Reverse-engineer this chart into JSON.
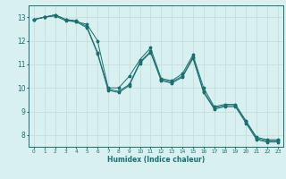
{
  "xlabel": "Humidex (Indice chaleur)",
  "bg_color": "#d8f0f0",
  "grid_color": "#c8dede",
  "line_color": "#1a7070",
  "xlim": [
    -0.5,
    23.5
  ],
  "ylim": [
    7.5,
    13.5
  ],
  "xticks": [
    0,
    1,
    2,
    3,
    4,
    5,
    6,
    7,
    8,
    9,
    10,
    11,
    12,
    13,
    14,
    15,
    16,
    17,
    18,
    19,
    20,
    21,
    22,
    23
  ],
  "yticks": [
    8,
    9,
    10,
    11,
    12,
    13
  ],
  "line1_y": [
    12.9,
    13.0,
    13.1,
    12.9,
    12.8,
    12.7,
    12.0,
    10.0,
    10.0,
    10.5,
    11.2,
    11.7,
    10.4,
    10.3,
    10.6,
    11.4,
    10.0,
    9.2,
    9.3,
    9.3,
    8.6,
    7.9,
    7.8,
    7.8
  ],
  "line2_y": [
    12.9,
    13.0,
    13.1,
    12.9,
    12.85,
    12.6,
    11.5,
    9.95,
    9.85,
    10.15,
    11.1,
    11.55,
    10.35,
    10.25,
    10.5,
    11.3,
    9.85,
    9.15,
    9.25,
    9.25,
    8.55,
    7.85,
    7.75,
    7.75
  ],
  "line3_y": [
    12.9,
    13.0,
    13.05,
    12.85,
    12.8,
    12.55,
    11.45,
    9.9,
    9.8,
    10.1,
    11.05,
    11.5,
    10.3,
    10.2,
    10.45,
    11.25,
    9.8,
    9.1,
    9.2,
    9.2,
    8.5,
    7.8,
    7.7,
    7.7
  ],
  "xtick_fontsize": 4.2,
  "ytick_fontsize": 5.5,
  "xlabel_fontsize": 5.5
}
